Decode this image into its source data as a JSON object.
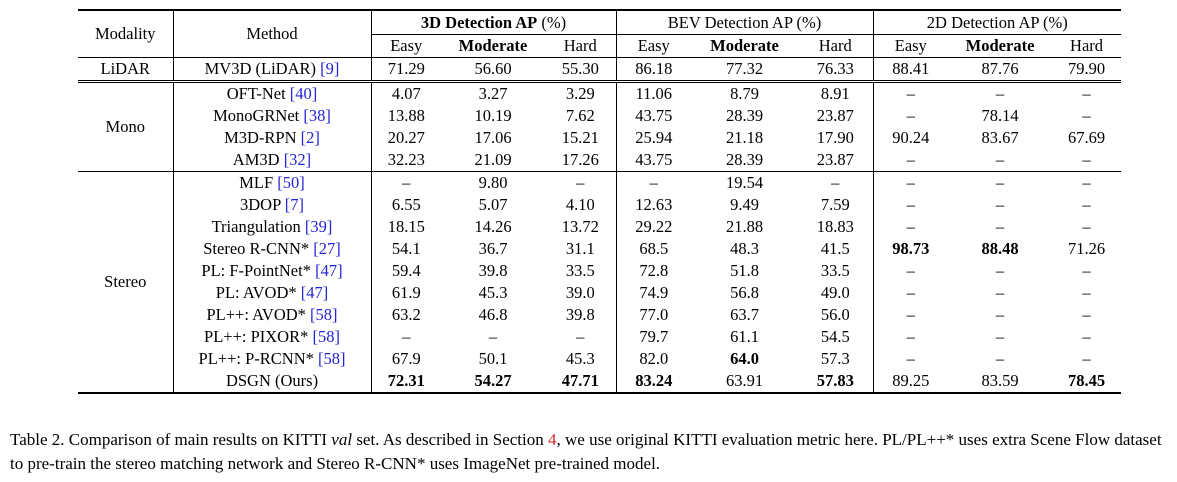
{
  "table": {
    "headers": {
      "modality": "Modality",
      "method": "Method",
      "groups": [
        {
          "title": "3D Detection AP",
          "unit": "(%)",
          "bold": true
        },
        {
          "title": "BEV Detection AP",
          "unit": "(%)",
          "bold": false
        },
        {
          "title": "2D Detection AP",
          "unit": "(%)",
          "bold": false
        }
      ],
      "sub": [
        "Easy",
        "Moderate",
        "Hard"
      ]
    },
    "sections": [
      {
        "modality": "LiDAR",
        "rows": [
          {
            "method": "MV3D (LiDAR) ",
            "ref": "[9]",
            "v": [
              "71.29",
              "56.60",
              "55.30",
              "86.18",
              "77.32",
              "76.33",
              "88.41",
              "87.76",
              "79.90"
            ]
          }
        ]
      },
      {
        "modality": "Mono",
        "rows": [
          {
            "method": "OFT-Net ",
            "ref": "[40]",
            "v": [
              "4.07",
              "3.27",
              "3.29",
              "11.06",
              "8.79",
              "8.91",
              "–",
              "–",
              "–"
            ]
          },
          {
            "method": "MonoGRNet ",
            "ref": "[38]",
            "v": [
              "13.88",
              "10.19",
              "7.62",
              "43.75",
              "28.39",
              "23.87",
              "–",
              "78.14",
              "–"
            ]
          },
          {
            "method": "M3D-RPN ",
            "ref": "[2]",
            "v": [
              "20.27",
              "17.06",
              "15.21",
              "25.94",
              "21.18",
              "17.90",
              "90.24",
              "83.67",
              "67.69"
            ]
          },
          {
            "method": "AM3D ",
            "ref": "[32]",
            "v": [
              "32.23",
              "21.09",
              "17.26",
              "43.75",
              "28.39",
              "23.87",
              "–",
              "–",
              "–"
            ]
          }
        ]
      },
      {
        "modality": "Stereo",
        "rows": [
          {
            "method": "MLF ",
            "ref": "[50]",
            "v": [
              "–",
              "9.80",
              "–",
              "–",
              "19.54",
              "–",
              "–",
              "–",
              "–"
            ]
          },
          {
            "method": "3DOP ",
            "ref": "[7]",
            "v": [
              "6.55",
              "5.07",
              "4.10",
              "12.63",
              "9.49",
              "7.59",
              "–",
              "–",
              "–"
            ]
          },
          {
            "method": "Triangulation ",
            "ref": "[39]",
            "v": [
              "18.15",
              "14.26",
              "13.72",
              "29.22",
              "21.88",
              "18.83",
              "–",
              "–",
              "–"
            ]
          },
          {
            "method": "Stereo R-CNN* ",
            "ref": "[27]",
            "v": [
              "54.1",
              "36.7",
              "31.1",
              "68.5",
              "48.3",
              "41.5",
              "98.73",
              "88.48",
              "71.26"
            ],
            "bold": [
              6,
              7
            ]
          },
          {
            "method": "PL: F-PointNet* ",
            "ref": "[47]",
            "v": [
              "59.4",
              "39.8",
              "33.5",
              "72.8",
              "51.8",
              "33.5",
              "–",
              "–",
              "–"
            ]
          },
          {
            "method": "PL: AVOD* ",
            "ref": "[47]",
            "v": [
              "61.9",
              "45.3",
              "39.0",
              "74.9",
              "56.8",
              "49.0",
              "–",
              "–",
              "–"
            ]
          },
          {
            "method": "PL++: AVOD* ",
            "ref": "[58]",
            "v": [
              "63.2",
              "46.8",
              "39.8",
              "77.0",
              "63.7",
              "56.0",
              "–",
              "–",
              "–"
            ]
          },
          {
            "method": "PL++: PIXOR* ",
            "ref": "[58]",
            "v": [
              "–",
              "–",
              "–",
              "79.7",
              "61.1",
              "54.5",
              "–",
              "–",
              "–"
            ]
          },
          {
            "method": "PL++: P-RCNN* ",
            "ref": "[58]",
            "v": [
              "67.9",
              "50.1",
              "45.3",
              "82.0",
              "64.0",
              "57.3",
              "–",
              "–",
              "–"
            ],
            "bold": [
              4
            ]
          },
          {
            "method": "DSGN (Ours)",
            "ref": "",
            "v": [
              "72.31",
              "54.27",
              "47.71",
              "83.24",
              "63.91",
              "57.83",
              "89.25",
              "83.59",
              "78.45"
            ],
            "bold": [
              0,
              1,
              2,
              3,
              5,
              8
            ]
          }
        ]
      }
    ]
  },
  "caption": {
    "label": "Table 2. Comparison of main results on KITTI ",
    "val": "val",
    "mid": " set. As described in Section ",
    "section_ref": "4",
    "rest": ", we use original KITTI evaluation metric here. PL/PL++* uses extra Scene Flow dataset to pre-train the stereo matching network and Stereo R-CNN* uses ImageNet pre-trained model."
  }
}
